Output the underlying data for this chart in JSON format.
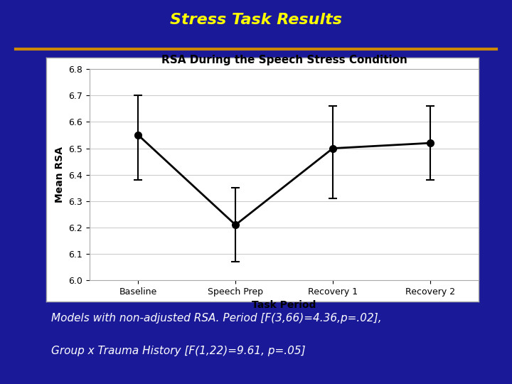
{
  "title": "Stress Task Results",
  "title_color": "#FFFF00",
  "title_fontsize": 16,
  "bg_color": "#1a1a99",
  "underline_color": "#cc8800",
  "chart_title": "RSA During the Speech Stress Condition",
  "chart_title_fontsize": 11,
  "xlabel": "Task Period",
  "ylabel": "Mean RSA",
  "xlabel_fontsize": 10,
  "ylabel_fontsize": 10,
  "categories": [
    "Baseline",
    "Speech Prep",
    "Recovery 1",
    "Recovery 2"
  ],
  "values": [
    6.55,
    6.21,
    6.5,
    6.52
  ],
  "errors_upper": [
    0.15,
    0.14,
    0.16,
    0.14
  ],
  "errors_lower": [
    0.17,
    0.14,
    0.19,
    0.14
  ],
  "ylim": [
    6.0,
    6.8
  ],
  "yticks": [
    6.0,
    6.1,
    6.2,
    6.3,
    6.4,
    6.5,
    6.6,
    6.7,
    6.8
  ],
  "annotation_line1": "Models with non-adjusted RSA. Period [F(3,66)=4.36,p=.02],",
  "annotation_line2": "Group x Trauma History [F(1,22)=9.61, p=.05]",
  "annotation_color": "#ffffff",
  "annotation_fontsize": 11,
  "line_color": "#000000",
  "marker_color": "#000000",
  "marker_size": 7,
  "line_width": 2.0,
  "chart_face_color": "#ffffff",
  "chart_border_color": "#cccccc",
  "tick_fontsize": 9
}
